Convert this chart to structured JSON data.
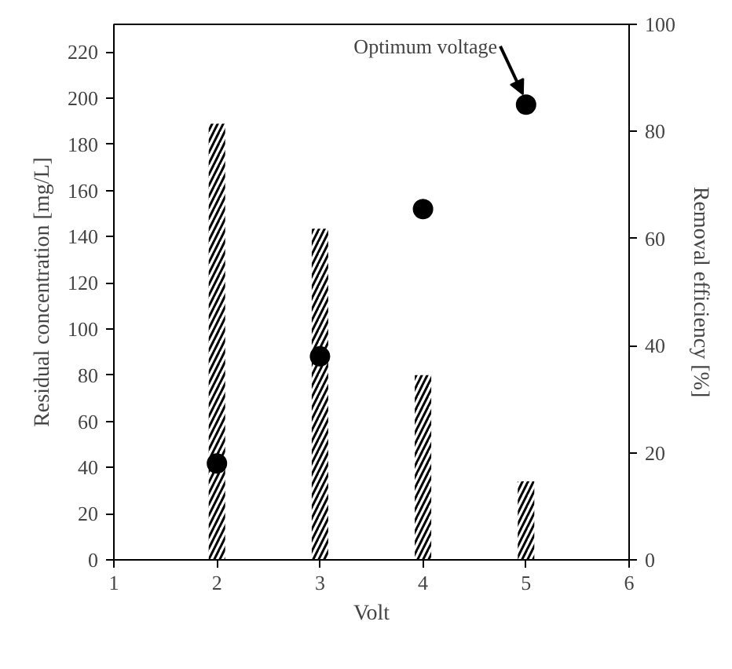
{
  "chart_data": {
    "type": "bar",
    "x": [
      2,
      3,
      4,
      5
    ],
    "xlabel": "Volt",
    "ylabel": "Residual concentration [mg/L]",
    "y2label": "Removal efficiency [%]",
    "xlim": [
      1,
      6
    ],
    "xticks": [
      1,
      2,
      3,
      4,
      5,
      6
    ],
    "ylim": [
      0,
      232
    ],
    "yticks": [
      0,
      20,
      40,
      60,
      80,
      100,
      120,
      140,
      160,
      180,
      200,
      220
    ],
    "y2lim": [
      0,
      100
    ],
    "y2ticks": [
      0,
      20,
      40,
      60,
      80,
      100
    ],
    "series": [
      {
        "color": "#000000",
        "values": [
          189,
          143.5,
          80,
          34
        ]
      },
      {
        "type": "scatter",
        "axis": "y2",
        "color": "#000000",
        "marker": "circle",
        "values": [
          18,
          38,
          65.5,
          85
        ]
      }
    ],
    "annotations": [
      {
        "text": "Optimum voltage",
        "x": 5,
        "y": 197
      }
    ],
    "grid": false
  }
}
